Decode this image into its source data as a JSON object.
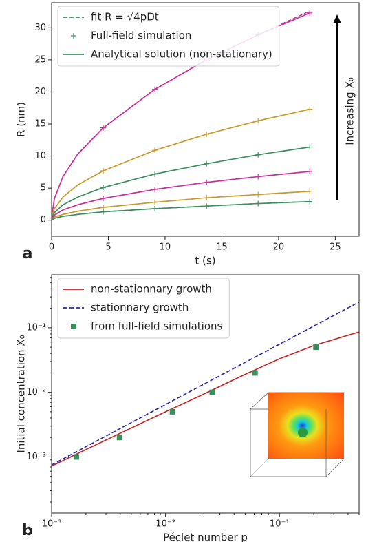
{
  "chart_data": [
    {
      "type": "line",
      "panel_label": "a",
      "xlabel": "t (s)",
      "ylabel": "R (nm)",
      "x": [
        0,
        0.25,
        1,
        2.3,
        4.55,
        9.1,
        13.65,
        18.2,
        22.75
      ],
      "xlim": [
        0,
        27.1
      ],
      "ylim": [
        -2.5,
        33.9
      ],
      "xticks": [
        0,
        5,
        10,
        15,
        20,
        25
      ],
      "yticks": [
        0,
        5,
        10,
        15,
        20,
        25,
        30
      ],
      "curve_colors": [
        "#cc2e99",
        "#c99a2e",
        "#3a8f5e",
        "#cc2e99",
        "#c99a2e",
        "#3a8f5e"
      ],
      "legend": "upper left",
      "annotation": "Increasing X₀",
      "series": [
        {
          "name": "fit R = √4pDt",
          "color": "#3a8f5e",
          "style": "dashed",
          "curves": [
            [
              0,
              3.4,
              6.8,
              10.3,
              14.4,
              20.4,
              25.0,
              28.9,
              32.6
            ],
            [
              0,
              1.8,
              3.6,
              5.5,
              7.7,
              10.9,
              13.4,
              15.5,
              17.3
            ],
            [
              0,
              1.2,
              2.4,
              3.6,
              5.1,
              7.2,
              8.8,
              10.2,
              11.4
            ],
            [
              0,
              0.8,
              1.6,
              2.4,
              3.4,
              4.8,
              5.9,
              6.8,
              7.6
            ],
            [
              0,
              0.5,
              0.9,
              1.4,
              2.0,
              2.8,
              3.5,
              4.0,
              4.5
            ],
            [
              0,
              0.3,
              0.6,
              0.9,
              1.3,
              1.8,
              2.2,
              2.6,
              2.9
            ]
          ]
        },
        {
          "name": "Full-field simulation",
          "color": "#3a8f5e",
          "style": "plus",
          "curves": [
            [
              null,
              null,
              null,
              null,
              14.4,
              20.4,
              25.0,
              28.9,
              32.3
            ],
            [
              null,
              null,
              null,
              null,
              7.7,
              10.9,
              13.4,
              15.5,
              17.3
            ],
            [
              null,
              null,
              null,
              null,
              5.1,
              7.2,
              8.8,
              10.2,
              11.4
            ],
            [
              null,
              null,
              null,
              null,
              3.4,
              4.8,
              5.9,
              6.8,
              7.6
            ],
            [
              null,
              null,
              null,
              null,
              2.0,
              2.8,
              3.5,
              4.0,
              4.5
            ],
            [
              null,
              null,
              null,
              null,
              1.3,
              1.8,
              2.2,
              2.6,
              2.9
            ]
          ]
        },
        {
          "name": "Analytical solution (non-stationary)",
          "color": "#3a8f5e",
          "style": "solid",
          "curves": [
            [
              0.6,
              3.4,
              6.8,
              10.3,
              14.4,
              20.4,
              25.0,
              28.9,
              32.3
            ],
            [
              0.5,
              1.8,
              3.6,
              5.5,
              7.7,
              10.9,
              13.4,
              15.5,
              17.3
            ],
            [
              0.4,
              1.2,
              2.4,
              3.6,
              5.1,
              7.2,
              8.8,
              10.2,
              11.4
            ],
            [
              0.3,
              0.8,
              1.6,
              2.4,
              3.4,
              4.8,
              5.9,
              6.8,
              7.6
            ],
            [
              0.2,
              0.5,
              0.9,
              1.4,
              2.0,
              2.8,
              3.5,
              4.0,
              4.5
            ],
            [
              0.1,
              0.3,
              0.6,
              0.9,
              1.3,
              1.8,
              2.2,
              2.6,
              2.9
            ]
          ]
        }
      ]
    },
    {
      "type": "line",
      "panel_label": "b",
      "xlabel": "Péclet number p",
      "ylabel": "Initial concentration X₀",
      "xscale": "log",
      "yscale": "log",
      "xlim": [
        0.001,
        0.5
      ],
      "ylim": [
        0.000135,
        0.66
      ],
      "xticks": [
        {
          "value": 0.001,
          "label": "10⁻³"
        },
        {
          "value": 0.01,
          "label": "10⁻²"
        },
        {
          "value": 0.1,
          "label": "10⁻¹"
        }
      ],
      "yticks": [
        {
          "value": 0.001,
          "label": "10⁻³"
        },
        {
          "value": 0.01,
          "label": "10⁻²"
        },
        {
          "value": 0.1,
          "label": "10⁻¹"
        }
      ],
      "legend": "upper left",
      "series": [
        {
          "name": "non-stationnary growth",
          "color": "#c8211e",
          "style": "solid",
          "x": [
            0.001,
            0.002,
            0.005,
            0.01,
            0.02,
            0.05,
            0.1,
            0.2,
            0.5
          ],
          "values": [
            0.00072,
            0.0013,
            0.0028,
            0.005,
            0.0088,
            0.019,
            0.033,
            0.053,
            0.086
          ]
        },
        {
          "name": "stationnary growth",
          "color": "#2323b8",
          "style": "dashed",
          "x": [
            0.001,
            0.002,
            0.005,
            0.01,
            0.02,
            0.05,
            0.1,
            0.2,
            0.5
          ],
          "values": [
            0.00075,
            0.00144,
            0.00339,
            0.00647,
            0.0124,
            0.0291,
            0.0556,
            0.106,
            0.25
          ]
        },
        {
          "name": "from full-field simulations",
          "color": "#3a8f5e",
          "style": "square",
          "x": [
            0.00165,
            0.00395,
            0.0115,
            0.0257,
            0.061,
            0.209
          ],
          "values": [
            0.001,
            0.002,
            0.005,
            0.01,
            0.02,
            0.05
          ]
        }
      ]
    }
  ]
}
